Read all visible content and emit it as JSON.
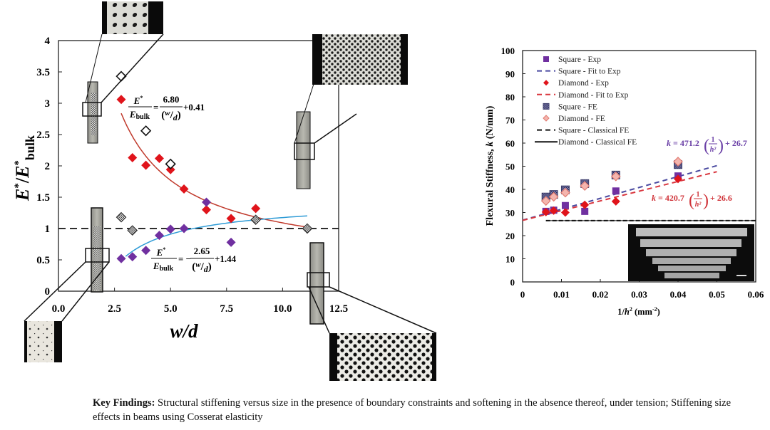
{
  "chart_data": [
    {
      "id": "left",
      "type": "scatter",
      "xlabel": "w/d",
      "ylabel": "E*/E*bulk",
      "xlim": [
        0,
        12.5
      ],
      "ylim": [
        0,
        4
      ],
      "xticks": [
        "0.0",
        "2.5",
        "5.0",
        "7.5",
        "10.0",
        "12.5"
      ],
      "xtick_values": [
        0,
        2.5,
        5,
        7.5,
        10,
        12.5
      ],
      "yticks": [
        "0",
        "0.5",
        "1",
        "1.5",
        "2",
        "2.5",
        "3",
        "3.5",
        "4"
      ],
      "ytick_values": [
        0,
        0.5,
        1,
        1.5,
        2,
        2.5,
        3,
        3.5,
        4
      ],
      "grid": false,
      "reference_line": {
        "y": 1,
        "style": "dashed",
        "color": "#111111"
      },
      "series": [
        {
          "name": "Diamond - Exp (red)",
          "marker": "diamond-filled",
          "color": "#e0141b",
          "x": [
            2.8,
            3.3,
            3.9,
            4.5,
            5.0,
            5.6,
            6.6,
            7.7,
            8.8
          ],
          "y": [
            3.06,
            2.13,
            2.01,
            2.12,
            1.94,
            1.63,
            1.3,
            1.16,
            1.32
          ]
        },
        {
          "name": "Square - Exp (purple)",
          "marker": "diamond-filled",
          "color": "#7030a0",
          "x": [
            2.8,
            3.3,
            3.9,
            4.5,
            5.0,
            5.6,
            6.6,
            7.7
          ],
          "y": [
            0.52,
            0.55,
            0.65,
            0.89,
            0.99,
            1.0,
            1.42,
            0.78
          ]
        },
        {
          "name": "FE open",
          "marker": "diamond-open",
          "color": "#111111",
          "x": [
            2.8,
            3.9,
            5.0
          ],
          "y": [
            3.43,
            2.56,
            2.03
          ]
        },
        {
          "name": "FE hatched",
          "marker": "diamond-hatched",
          "color": "#333333",
          "x": [
            2.8,
            3.3,
            8.8,
            11.1
          ],
          "y": [
            1.18,
            0.97,
            1.14,
            1.0
          ]
        }
      ],
      "fits": [
        {
          "name": "red fit",
          "color": "#c0392b",
          "a": 6.8,
          "b": 0.41,
          "x_range": [
            2.8,
            11.1
          ],
          "label": {
            "lhs_num": "E*",
            "lhs_den": "Ebulk",
            "coef": "6.80",
            "sign": "=",
            "den": "(w/d)",
            "const": "+0.41"
          }
        },
        {
          "name": "blue fit",
          "color": "#2e9bd6",
          "a": -2.65,
          "b": 1.44,
          "x_range": [
            3.0,
            11.1
          ],
          "label": {
            "lhs_num": "E*",
            "lhs_den": "Ebulk",
            "coef": "2.65",
            "sign": "= −",
            "den": "(w/d)",
            "const": "+1.44"
          }
        }
      ],
      "insets": [
        "diamond-lattice-top-left",
        "diamond-lattice-top-right",
        "square-lattice-bottom-left",
        "square-lattice-bottom-right"
      ]
    },
    {
      "id": "right",
      "type": "scatter",
      "xlabel": "1/h² (mm⁻²)",
      "ylabel": "Flexural Stiffness, k (N/mm)",
      "xlim": [
        0,
        0.06
      ],
      "ylim": [
        0,
        100
      ],
      "xticks": [
        "0",
        "0.01",
        "0.02",
        "0.03",
        "0.04",
        "0.05",
        "0.06"
      ],
      "xtick_values": [
        0,
        0.01,
        0.02,
        0.03,
        0.04,
        0.05,
        0.06
      ],
      "yticks": [
        "0",
        "10",
        "20",
        "30",
        "40",
        "50",
        "60",
        "70",
        "80",
        "90",
        "100"
      ],
      "ytick_values": [
        0,
        10,
        20,
        30,
        40,
        50,
        60,
        70,
        80,
        90,
        100
      ],
      "grid": false,
      "legend_position": "top-left",
      "legend": [
        {
          "label": "Square - Exp",
          "kind": "square",
          "color": "#7030a0"
        },
        {
          "label": "Square - Fit to Exp",
          "kind": "dash",
          "color": "#4a4aa0"
        },
        {
          "label": "Diamond - Exp",
          "kind": "diamond",
          "color": "#e0141b"
        },
        {
          "label": "Diamond - Fit to Exp",
          "kind": "dash",
          "color": "#d9363e"
        },
        {
          "label": "Square - FE",
          "kind": "square-hatched",
          "color": "#3c3c6a"
        },
        {
          "label": "Diamond - FE",
          "kind": "diamond-open",
          "color": "#e07a70"
        },
        {
          "label": "Square - Classical FE",
          "kind": "dash",
          "color": "#111111"
        },
        {
          "label": "Diamond - Classical FE",
          "kind": "solid",
          "color": "#111111"
        }
      ],
      "series": [
        {
          "name": "Square - Exp",
          "marker": "square",
          "color": "#7030a0",
          "x": [
            0.006,
            0.008,
            0.011,
            0.016,
            0.024,
            0.04
          ],
          "y": [
            30.5,
            31.0,
            33.0,
            30.5,
            39.3,
            45.8
          ]
        },
        {
          "name": "Diamond - Exp",
          "marker": "diamond",
          "color": "#e0141b",
          "x": [
            0.006,
            0.008,
            0.011,
            0.016,
            0.024,
            0.04
          ],
          "y": [
            30.2,
            30.8,
            30.0,
            33.3,
            34.8,
            44.5
          ]
        },
        {
          "name": "Square - FE",
          "marker": "square-hatched",
          "color": "#3c3c6a",
          "x": [
            0.006,
            0.008,
            0.011,
            0.016,
            0.024,
            0.04
          ],
          "y": [
            36.7,
            37.8,
            39.8,
            42.5,
            46.2,
            50.7
          ]
        },
        {
          "name": "Diamond - FE",
          "marker": "diamond-open",
          "color": "#e07a70",
          "x": [
            0.006,
            0.008,
            0.011,
            0.016,
            0.024,
            0.04
          ],
          "y": [
            35.0,
            36.8,
            38.6,
            41.5,
            45.6,
            52.0
          ]
        }
      ],
      "fits": [
        {
          "name": "Square - Fit to Exp",
          "color": "#4a4aa0",
          "slope": 471.2,
          "intercept": 26.7,
          "x_range": [
            0,
            0.05
          ],
          "label": "k = 471.2 (1/h²) + 26.7"
        },
        {
          "name": "Diamond - Fit to Exp",
          "color": "#d9363e",
          "slope": 420.7,
          "intercept": 26.6,
          "x_range": [
            0,
            0.05
          ],
          "label": "k = 420.7 (1/h²) + 26.6"
        }
      ],
      "classical_fe": {
        "y": 26.5,
        "x_range": [
          0.006,
          0.06
        ]
      },
      "inset": "beam-specimens-photo"
    }
  ],
  "labels": {
    "left_eq1": {
      "num_top": "E",
      "den_bottom": "E",
      "den_sub": "bulk",
      "coef": "6.80",
      "w": "w",
      "d": "d",
      "const": "+0.41"
    },
    "left_eq2": {
      "num_top": "E",
      "den_bottom": "E",
      "den_sub": "bulk",
      "coef": "2.65",
      "w": "w",
      "d": "d",
      "const": "+1.44"
    },
    "right_eq1": {
      "k": "k",
      "eq": " = 471.2",
      "one": "1",
      "h2": "h²",
      "const": "+ 26.7"
    },
    "right_eq2": {
      "k": "k",
      "eq": " = 420.7",
      "one": "1",
      "h2": "h²",
      "const": "+ 26.6"
    }
  },
  "caption": {
    "heading": "Key Findings:",
    "text": " Structural stiffening versus size in the presence of boundary constraints and softening in the absence thereof, under tension; Stiffening size effects in beams using Cosserat elasticity"
  }
}
